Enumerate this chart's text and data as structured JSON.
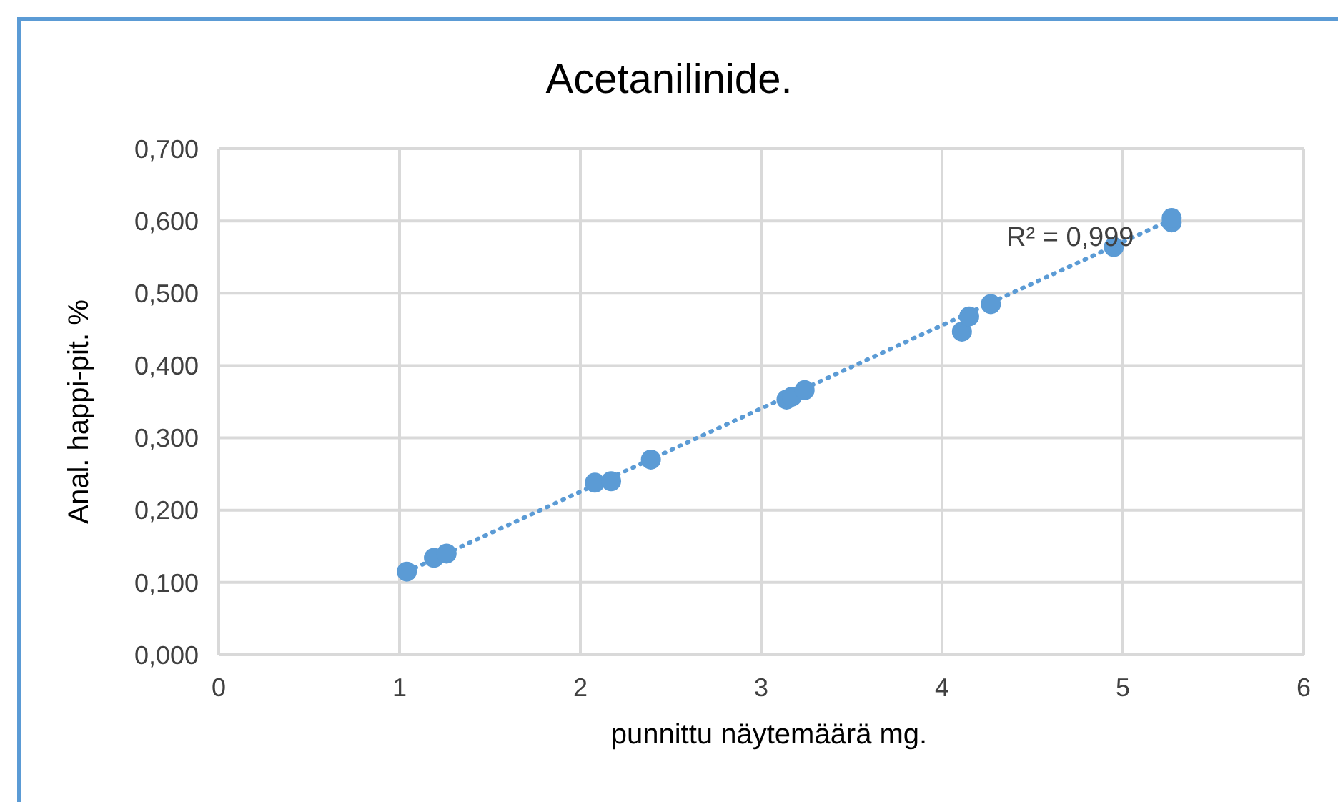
{
  "chart_data": {
    "type": "scatter",
    "title": "Acetanilinide.",
    "xlabel": "punnittu näytemäärä mg.",
    "ylabel": "Anal. happi-pit. %",
    "xlim": [
      0,
      6
    ],
    "xticks": [
      0,
      1,
      2,
      3,
      4,
      5,
      6
    ],
    "ylim": [
      0,
      0.7
    ],
    "yticks": [
      {
        "value": 0,
        "label": "0,000"
      },
      {
        "value": 0.1,
        "label": "0,100"
      },
      {
        "value": 0.2,
        "label": "0,200"
      },
      {
        "value": 0.3,
        "label": "0,300"
      },
      {
        "value": 0.4,
        "label": "0,400"
      },
      {
        "value": 0.5,
        "label": "0,500"
      },
      {
        "value": 0.6,
        "label": "0,600"
      },
      {
        "value": 0.7,
        "label": "0,700"
      }
    ],
    "grid": true,
    "series": [
      {
        "color": "#5b9bd5",
        "marker": "circle",
        "x": [
          1.04,
          1.19,
          1.26,
          2.08,
          2.17,
          2.39,
          3.14,
          3.17,
          3.24,
          4.11,
          4.15,
          4.27,
          4.95,
          5.27,
          5.27
        ],
        "values": [
          0.115,
          0.134,
          0.14,
          0.238,
          0.24,
          0.27,
          0.353,
          0.357,
          0.366,
          0.447,
          0.468,
          0.485,
          0.564,
          0.598,
          0.604
        ]
      },
      {
        "type": "line",
        "color": "#5b9bd5",
        "line_style": "dotted",
        "marker": "none",
        "x": [
          1.04,
          5.27
        ],
        "values": [
          0.115,
          0.602
        ]
      }
    ],
    "annotations": [
      "R² = 0,999"
    ]
  }
}
